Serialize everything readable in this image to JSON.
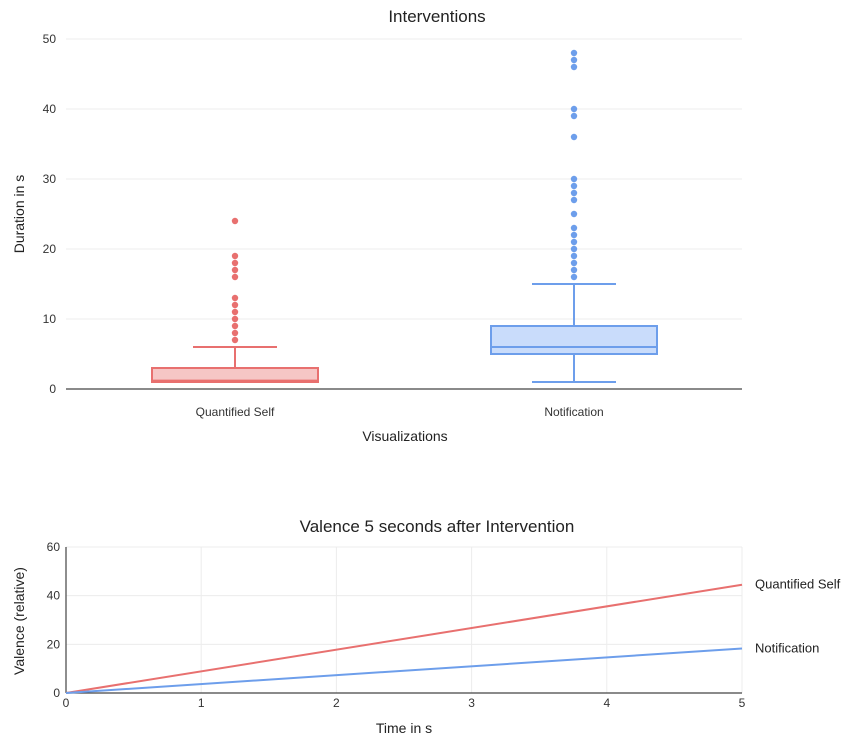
{
  "chart_data": [
    {
      "type": "box",
      "title": "Interventions",
      "xlabel": "Visualizations",
      "ylabel": "Duration in s",
      "ylim": [
        0,
        50
      ],
      "yticks": [
        0,
        10,
        20,
        30,
        40,
        50
      ],
      "grid": true,
      "series": [
        {
          "name": "Quantified Self",
          "color": "#e8706f",
          "fill": "#f6c6c5",
          "min": 1,
          "q1": 1,
          "median": 1.2,
          "q3": 3,
          "max": 6,
          "outliers": [
            7,
            8,
            9,
            10,
            11,
            12,
            13,
            16,
            17,
            18,
            19,
            24
          ]
        },
        {
          "name": "Notification",
          "color": "#6d9eeb",
          "fill": "#c9dcfb",
          "min": 1,
          "q1": 5,
          "median": 6,
          "q3": 9,
          "max": 15,
          "outliers": [
            16,
            17,
            18,
            19,
            20,
            21,
            22,
            23,
            25,
            27,
            28,
            29,
            30,
            36,
            39,
            40,
            46,
            47,
            48
          ]
        }
      ]
    },
    {
      "type": "line",
      "title": "Valence 5 seconds after Intervention",
      "xlabel": "Time in s",
      "ylabel": "Valence (relative)",
      "xlim": [
        0,
        5
      ],
      "ylim": [
        0,
        60
      ],
      "xticks": [
        0,
        1,
        2,
        3,
        4,
        5
      ],
      "yticks": [
        0,
        20,
        40,
        60
      ],
      "grid": true,
      "legend": "right (end-of-line labels)",
      "series": [
        {
          "name": "Quantified Self",
          "color": "#e8706f",
          "x": [
            0,
            5
          ],
          "y": [
            0,
            44.5
          ]
        },
        {
          "name": "Notification",
          "color": "#6d9eeb",
          "x": [
            0,
            5
          ],
          "y": [
            0,
            18.3
          ]
        }
      ]
    }
  ]
}
